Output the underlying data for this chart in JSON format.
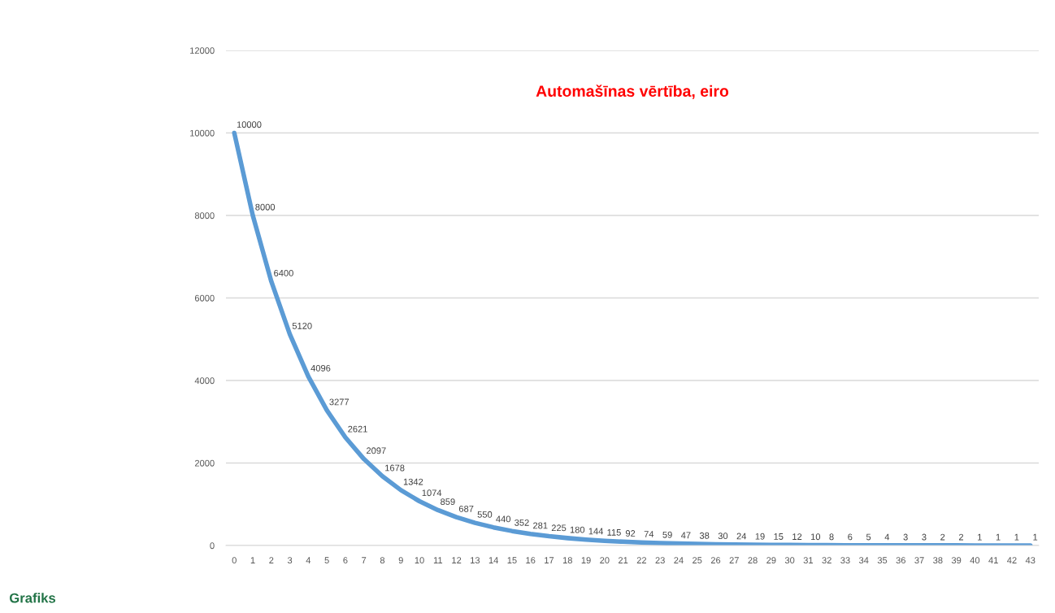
{
  "chart_data": {
    "type": "line",
    "title": "Automašīnas vērtība, eiro",
    "categories": [
      "0",
      "1",
      "2",
      "3",
      "4",
      "5",
      "6",
      "7",
      "8",
      "9",
      "10",
      "11",
      "12",
      "13",
      "14",
      "15",
      "16",
      "17",
      "18",
      "19",
      "20",
      "21",
      "22",
      "23",
      "24",
      "25",
      "26",
      "27",
      "28",
      "29",
      "30",
      "31",
      "32",
      "33",
      "34",
      "35",
      "36",
      "37",
      "38",
      "39",
      "40",
      "41",
      "42",
      "43"
    ],
    "series": [
      {
        "color": "#5b9bd5",
        "values": [
          10000,
          8000,
          6400,
          5120,
          4096,
          3277,
          2621,
          2097,
          1678,
          1342,
          1074,
          859,
          687,
          550,
          440,
          352,
          281,
          225,
          180,
          144,
          115,
          92,
          74,
          59,
          47,
          38,
          30,
          24,
          19,
          15,
          12,
          10,
          8,
          6,
          5,
          4,
          3,
          3,
          2,
          2,
          1,
          1,
          1,
          1
        ]
      }
    ],
    "ylim": [
      0,
      12000
    ],
    "yticks": [
      0,
      2000,
      4000,
      6000,
      8000,
      10000,
      12000
    ],
    "grid": "y",
    "legend": false,
    "marker": "none",
    "line_style": "solid",
    "data_labels": true,
    "annotations": [
      "Grafiks"
    ]
  }
}
